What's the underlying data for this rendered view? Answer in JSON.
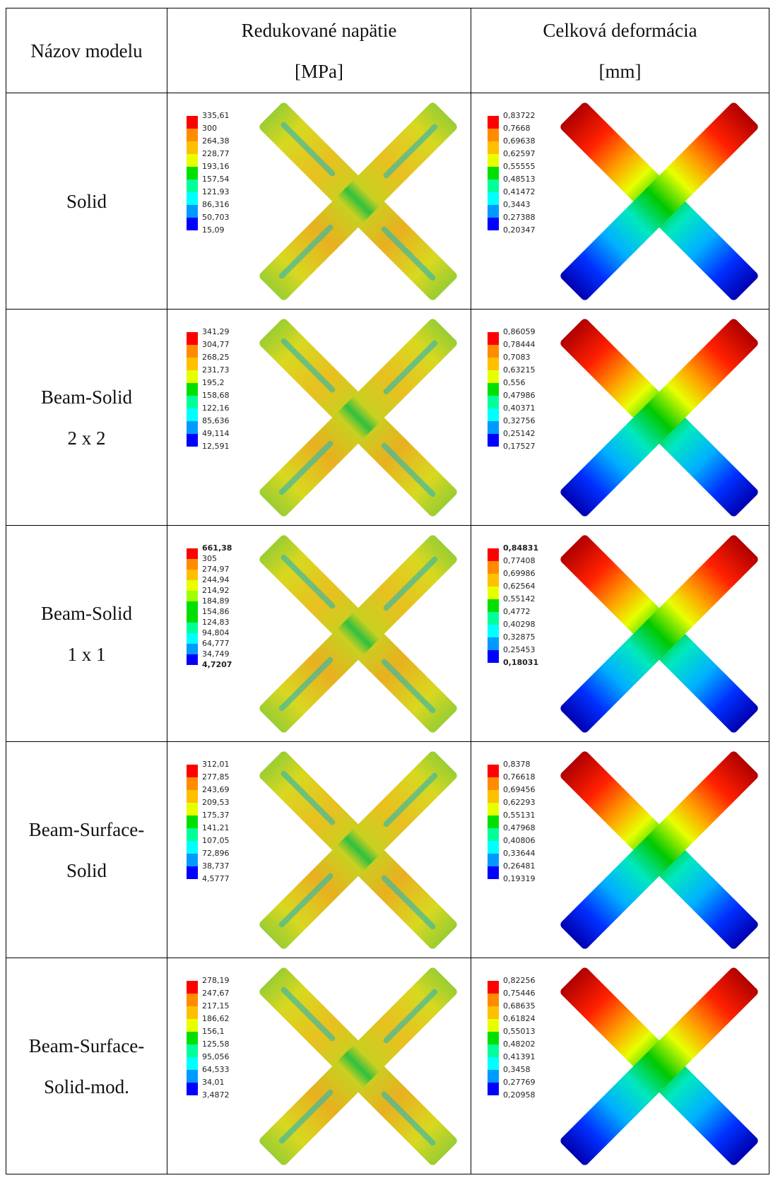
{
  "header": {
    "col1": "Názov modelu",
    "col2": [
      "Redukované napätie",
      "[MPa]"
    ],
    "col3": [
      "Celková deformácia",
      "[mm]"
    ]
  },
  "rows": [
    {
      "name": [
        "Solid"
      ],
      "stress": [
        "335,61",
        "300",
        "264,38",
        "228,77",
        "193,16",
        "157,54",
        "121,93",
        "86,316",
        "50,703",
        "15,09"
      ],
      "deformation": [
        "0,83722",
        "0,7668",
        "0,69638",
        "0,62597",
        "0,55555",
        "0,48513",
        "0,41472",
        "0,3443",
        "0,27388",
        "0,20347"
      ]
    },
    {
      "name": [
        "Beam-Solid",
        "2 x 2"
      ],
      "stress": [
        "341,29",
        "304,77",
        "268,25",
        "231,73",
        "195,2",
        "158,68",
        "122,16",
        "85,636",
        "49,114",
        "12,591"
      ],
      "deformation": [
        "0,86059",
        "0,78444",
        "0,7083",
        "0,63215",
        "0,556",
        "0,47986",
        "0,40371",
        "0,32756",
        "0,25142",
        "0,17527"
      ]
    },
    {
      "name": [
        "Beam-Solid",
        "1 x 1"
      ],
      "stress": [
        "661,38",
        "305",
        "274,97",
        "244,94",
        "214,92",
        "184,89",
        "154,86",
        "124,83",
        "94,804",
        "64,777",
        "34,749",
        "4,7207"
      ],
      "deformation": [
        "0,84831",
        "0,77408",
        "0,69986",
        "0,62564",
        "0,55142",
        "0,4772",
        "0,40298",
        "0,32875",
        "0,25453",
        "0,18031"
      ]
    },
    {
      "name": [
        "Beam-Surface-",
        "Solid"
      ],
      "stress": [
        "312,01",
        "277,85",
        "243,69",
        "209,53",
        "175,37",
        "141,21",
        "107,05",
        "72,896",
        "38,737",
        "4,5777"
      ],
      "deformation": [
        "0,8378",
        "0,76618",
        "0,69456",
        "0,62293",
        "0,55131",
        "0,47968",
        "0,40806",
        "0,33644",
        "0,26481",
        "0,19319"
      ]
    },
    {
      "name": [
        "Beam-Surface-",
        "Solid-mod."
      ],
      "stress": [
        "278,19",
        "247,67",
        "217,15",
        "186,62",
        "156,1",
        "125,58",
        "95,056",
        "64,533",
        "34,01",
        "3,4872"
      ],
      "deformation": [
        "0,82256",
        "0,75446",
        "0,68635",
        "0,61824",
        "0,55013",
        "0,48202",
        "0,41391",
        "0,3458",
        "0,27769",
        "0,20958"
      ]
    }
  ]
}
